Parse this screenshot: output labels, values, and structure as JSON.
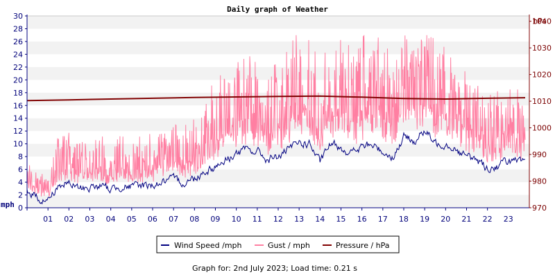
{
  "chart_data": {
    "type": "line",
    "title": "Daily graph of Weather",
    "x_tick_labels": [
      "01",
      "02",
      "03",
      "04",
      "05",
      "06",
      "07",
      "08",
      "09",
      "10",
      "11",
      "12",
      "13",
      "14",
      "15",
      "16",
      "17",
      "18",
      "19",
      "20",
      "21",
      "22",
      "23"
    ],
    "xlim": [
      0,
      24
    ],
    "left_axis": {
      "unit": "mph",
      "ticks": [
        0,
        2,
        4,
        6,
        8,
        10,
        12,
        14,
        16,
        18,
        20,
        22,
        24,
        26,
        28,
        30
      ],
      "ylim": [
        0,
        30
      ]
    },
    "right_axis": {
      "unit": "hPa",
      "ticks": [
        970,
        980,
        990,
        1000,
        1010,
        1020,
        1030,
        1040
      ],
      "ylim": [
        970,
        1042
      ]
    },
    "grid": "horizontal bands",
    "legend_position": "bottom-center",
    "series": [
      {
        "name": "Wind Speed /mph",
        "axis": "left",
        "color": "#000080",
        "x": [
          0,
          0.5,
          1,
          1.5,
          2,
          2.5,
          3,
          3.5,
          4,
          4.5,
          5,
          5.5,
          6,
          6.5,
          7,
          7.5,
          8,
          8.5,
          9,
          9.5,
          10,
          10.5,
          11,
          11.5,
          12,
          12.5,
          13,
          13.5,
          14,
          14.5,
          15,
          15.5,
          16,
          16.5,
          17,
          17.5,
          18,
          18.5,
          19,
          19.5,
          20,
          20.5,
          21,
          21.5,
          22,
          22.5,
          23,
          23.5,
          23.8
        ],
        "values": [
          3.0,
          1.5,
          1.2,
          3.5,
          3.8,
          3.0,
          3.2,
          3.4,
          2.8,
          3.5,
          3.2,
          3.5,
          3.6,
          4.0,
          4.3,
          4.0,
          4.6,
          5.8,
          6.5,
          7.5,
          8.5,
          9.0,
          8.8,
          7.5,
          8.0,
          9.0,
          10.2,
          10.0,
          7.0,
          10.0,
          9.5,
          8.5,
          9.5,
          9.8,
          8.8,
          8.0,
          11.0,
          10.5,
          12.0,
          10.0,
          10.2,
          9.2,
          8.0,
          7.5,
          6.2,
          6.5,
          7.5,
          7.0,
          6.8
        ]
      },
      {
        "name": "Gust / mph",
        "axis": "left",
        "color": "#ff7fa2",
        "x": [
          0,
          0.5,
          1,
          1.5,
          2,
          2.5,
          3,
          3.5,
          4,
          4.5,
          5,
          5.5,
          6,
          6.5,
          7,
          7.5,
          8,
          8.5,
          9,
          9.5,
          10,
          10.5,
          11,
          11.5,
          12,
          12.5,
          13,
          13.5,
          14,
          14.5,
          15,
          15.5,
          16,
          16.5,
          17,
          17.5,
          18,
          18.5,
          19,
          19.5,
          20,
          20.5,
          21,
          21.5,
          22,
          22.5,
          23,
          23.5,
          23.8
        ],
        "values": [
          5,
          4,
          3,
          8,
          8,
          7,
          7,
          8,
          6,
          8,
          7,
          8,
          8,
          9,
          9,
          9,
          10,
          12,
          14,
          15,
          16,
          17,
          16,
          15,
          16,
          18,
          20,
          19,
          15,
          19,
          19,
          17,
          19,
          19,
          18,
          16,
          20,
          19,
          21,
          19,
          18,
          16,
          15,
          14,
          12,
          13,
          14,
          13,
          14
        ]
      },
      {
        "name": "Pressure / hPa",
        "axis": "right",
        "color": "#800000",
        "x": [
          0,
          2,
          4,
          6,
          8,
          10,
          12,
          14,
          16,
          18,
          20,
          22,
          23.8
        ],
        "values": [
          1010.2,
          1010.5,
          1010.8,
          1011.1,
          1011.4,
          1011.6,
          1011.8,
          1011.9,
          1011.5,
          1011.0,
          1010.8,
          1011.1,
          1011.3
        ]
      }
    ]
  },
  "footer": {
    "text": "Graph for: 2nd July 2023; Load time: 0.21 s"
  }
}
